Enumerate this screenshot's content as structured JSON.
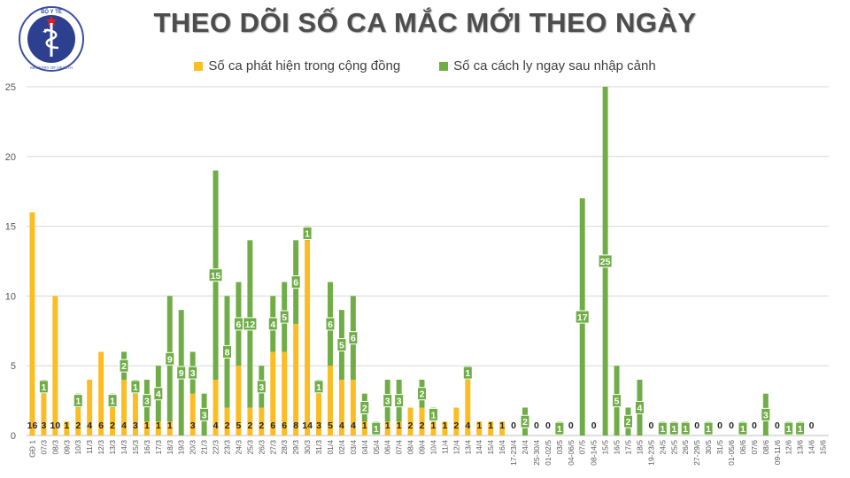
{
  "title": "THEO DÕI SỐ CA MẮC MỚI THEO NGÀY",
  "logo": {
    "top_text": "BỘ Y TẾ",
    "bottom_text": "MINISTRY OF HEALTH"
  },
  "colors": {
    "community": "#fbbd23",
    "quarantine": "#70ad47",
    "title": "#4d4d4d",
    "grid": "#d9d9d9",
    "axis_text": "#595959"
  },
  "chart_data": {
    "type": "bar",
    "stacked": true,
    "title": "THEO DÕI SỐ CA MẮC MỚI THEO NGÀY",
    "xlabel": "",
    "ylabel": "",
    "ylim": [
      0,
      25
    ],
    "yticks": [
      0,
      5,
      10,
      15,
      20,
      25
    ],
    "grid": true,
    "legend_position": "top",
    "categories": [
      "GĐ 1",
      "07/3",
      "08/3",
      "09/3",
      "10/3",
      "11/3",
      "12/3",
      "13/3",
      "14/3",
      "15/3",
      "16/3",
      "17/3",
      "18/3",
      "19/3",
      "20/3",
      "21/3",
      "22/3",
      "23/3",
      "24/3",
      "25/3",
      "26/3",
      "27/3",
      "28/3",
      "29/3",
      "30/3",
      "31/3",
      "01/4",
      "02/4",
      "03/4",
      "04/4",
      "05/4",
      "06/4",
      "07/4",
      "08/4",
      "09/4",
      "10/4",
      "11/4",
      "12/4",
      "13/4",
      "14/4",
      "15/4",
      "16/4",
      "17-23/4",
      "24/4",
      "25-30/4",
      "01-02/5",
      "03/5",
      "04-06/5",
      "07/5",
      "08-14/5",
      "15/5",
      "16/5",
      "17/5",
      "18/5",
      "19-23/5",
      "24/5",
      "25/5",
      "26/5",
      "27-29/5",
      "30/5",
      "31/5",
      "01-05/6",
      "06/6",
      "07/6",
      "08/6",
      "09-11/6",
      "12/6",
      "13/6",
      "14/6",
      "15/6"
    ],
    "series": [
      {
        "name": "Số ca phát hiện trong cộng đồng",
        "values": [
          16,
          3,
          10,
          1,
          2,
          4,
          6,
          2,
          4,
          3,
          1,
          1,
          1,
          0,
          3,
          0,
          4,
          2,
          5,
          2,
          2,
          6,
          6,
          8,
          14,
          3,
          5,
          4,
          4,
          1,
          0,
          1,
          1,
          2,
          2,
          1,
          1,
          2,
          4,
          1,
          1,
          1,
          0,
          0,
          0,
          0,
          0,
          0,
          0,
          0,
          0,
          0,
          0,
          0,
          0,
          0,
          0,
          0,
          0,
          0,
          0,
          0,
          0,
          0,
          0,
          0,
          0,
          0,
          0,
          0
        ],
        "labels": [
          "16",
          "3",
          "10",
          "1",
          "2",
          "4",
          "6",
          "2",
          "4",
          "3",
          "1",
          "1",
          "1",
          "",
          "3",
          "",
          "4",
          "2",
          "5",
          "2",
          "2",
          "6",
          "6",
          "8",
          "14",
          "3",
          "5",
          "4",
          "4",
          "1",
          "",
          "1",
          "1",
          "2",
          "2",
          "1",
          "1",
          "2",
          "4",
          "1",
          "1",
          "1",
          "0",
          "",
          "0",
          "0",
          "",
          "0",
          "",
          "0",
          "",
          "",
          "",
          "",
          "0",
          "",
          "",
          "",
          "0",
          "",
          "0",
          "0",
          "",
          "0",
          "",
          "0",
          "",
          "",
          "0",
          ""
        ]
      },
      {
        "name": "Số ca cách ly ngay sau nhập cảnh",
        "values": [
          0,
          1,
          0,
          0,
          1,
          0,
          0,
          1,
          2,
          1,
          3,
          4,
          9,
          9,
          3,
          3,
          15,
          8,
          6,
          12,
          3,
          4,
          5,
          6,
          1,
          1,
          6,
          5,
          6,
          2,
          1,
          3,
          3,
          0,
          2,
          1,
          0,
          0,
          1,
          0,
          0,
          0,
          0,
          2,
          0,
          0,
          1,
          0,
          17,
          0,
          25,
          5,
          2,
          4,
          0,
          1,
          1,
          1,
          0,
          1,
          0,
          0,
          1,
          0,
          3,
          0,
          1,
          1,
          0,
          0
        ],
        "labels": [
          "",
          "1",
          "",
          "",
          "1",
          "",
          "",
          "1",
          "2",
          "1",
          "3",
          "4",
          "9",
          "9",
          "3",
          "3",
          "15",
          "8",
          "6",
          "12",
          "3",
          "4",
          "5",
          "6",
          "1",
          "1",
          "6",
          "5",
          "6",
          "2",
          "1",
          "3",
          "3",
          "",
          "2",
          "1",
          "",
          "",
          "1",
          "",
          "",
          "",
          "",
          "2",
          "",
          "",
          "1",
          "",
          "17",
          "",
          "25",
          "5",
          "2",
          "4",
          "",
          "1",
          "1",
          "1",
          "",
          "1",
          "",
          "",
          "1",
          "",
          "3",
          "",
          "1",
          "1",
          "",
          ""
        ]
      }
    ]
  }
}
